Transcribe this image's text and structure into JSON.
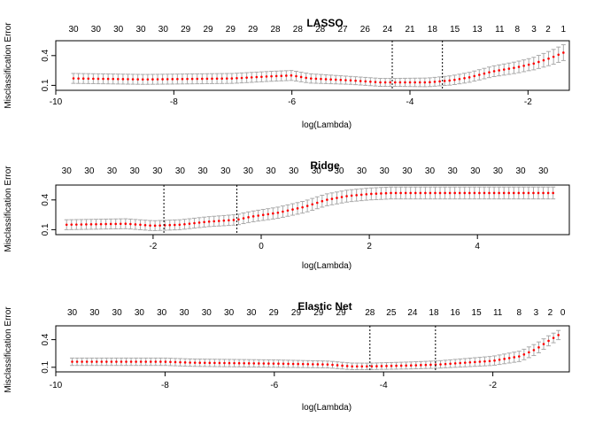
{
  "chart_data": [
    {
      "type": "line",
      "title": "LASSO",
      "xlabel": "log(Lambda)",
      "ylabel": "Misclassification Error",
      "xlim": [
        -10,
        -1.3
      ],
      "ylim": [
        0.05,
        0.55
      ],
      "xticks": [
        "-10",
        "-8",
        "-6",
        "-4",
        "-2"
      ],
      "xtick_values": [
        -10,
        -8,
        -6,
        -4,
        -2
      ],
      "yticks": [
        "0.1",
        "0.4"
      ],
      "ytick_values": [
        0.1,
        0.4
      ],
      "top_axis_labels": [
        "30",
        "30",
        "30",
        "30",
        "30",
        "29",
        "29",
        "29",
        "29",
        "28",
        "28",
        "28",
        "27",
        "26",
        "24",
        "21",
        "18",
        "15",
        "13",
        "11",
        "8",
        "3",
        "2",
        "1"
      ],
      "top_axis_x": [
        -9.7,
        -9.32,
        -8.94,
        -8.56,
        -8.18,
        -7.8,
        -7.42,
        -7.04,
        -6.66,
        -6.28,
        -5.9,
        -5.52,
        -5.14,
        -4.76,
        -4.38,
        -4.0,
        -3.62,
        -3.24,
        -2.86,
        -2.48,
        -2.18,
        -1.9,
        -1.66,
        -1.4
      ],
      "vlines": [
        -4.3,
        -3.45
      ],
      "curve_x": [
        -9.7,
        -8.5,
        -7.0,
        -6.4,
        -6.0,
        -5.7,
        -5.0,
        -4.5,
        -4.3,
        -3.7,
        -3.3,
        -3.0,
        -2.6,
        -2.2,
        -1.9,
        -1.6,
        -1.4
      ],
      "curve_y": [
        0.17,
        0.16,
        0.17,
        0.19,
        0.2,
        0.17,
        0.15,
        0.13,
        0.13,
        0.13,
        0.15,
        0.18,
        0.24,
        0.28,
        0.32,
        0.38,
        0.43
      ],
      "se_x": [
        -9.7,
        -7.0,
        -6.0,
        -5.0,
        -4.3,
        -3.5,
        -3.0,
        -2.5,
        -2.0,
        -1.7,
        -1.4
      ],
      "se_y": [
        0.05,
        0.05,
        0.05,
        0.04,
        0.04,
        0.045,
        0.05,
        0.055,
        0.06,
        0.07,
        0.08
      ],
      "n_points": 100
    },
    {
      "type": "line",
      "title": "Ridge",
      "xlabel": "log(Lambda)",
      "ylabel": "Misclassification Error",
      "xlim": [
        -3.8,
        5.7
      ],
      "ylim": [
        0.05,
        0.55
      ],
      "xticks": [
        "-2",
        "0",
        "2",
        "4"
      ],
      "xtick_values": [
        -2,
        0,
        2,
        4
      ],
      "yticks": [
        "0.1",
        "0.4"
      ],
      "ytick_values": [
        0.1,
        0.4
      ],
      "top_axis_labels": [
        "30",
        "30",
        "30",
        "30",
        "30",
        "30",
        "30",
        "30",
        "30",
        "30",
        "30",
        "30",
        "30",
        "30",
        "30",
        "30",
        "30",
        "30",
        "30",
        "30",
        "30",
        "30"
      ],
      "top_axis_x": [
        -3.6,
        -3.18,
        -2.76,
        -2.34,
        -1.92,
        -1.5,
        -1.08,
        -0.66,
        -0.24,
        0.18,
        0.6,
        1.02,
        1.44,
        1.86,
        2.28,
        2.7,
        3.12,
        3.54,
        3.96,
        4.38,
        4.8,
        5.22
      ],
      "vlines": [
        -1.8,
        -0.45
      ],
      "curve_x": [
        -3.6,
        -2.5,
        -2.0,
        -1.5,
        -1.0,
        -0.45,
        -0.2,
        0.3,
        0.8,
        1.2,
        1.6,
        2.0,
        2.4,
        5.4
      ],
      "curve_y": [
        0.15,
        0.16,
        0.14,
        0.15,
        0.18,
        0.2,
        0.23,
        0.27,
        0.33,
        0.4,
        0.44,
        0.46,
        0.47,
        0.47
      ],
      "se_x": [
        -3.6,
        -1.0,
        0.0,
        1.0,
        2.0,
        5.4
      ],
      "se_y": [
        0.05,
        0.05,
        0.055,
        0.06,
        0.06,
        0.06
      ],
      "n_points": 100
    },
    {
      "type": "line",
      "title": "Elastic Net",
      "xlabel": "log(Lambda)",
      "ylabel": "Misclassification Error",
      "xlim": [
        -10,
        -0.6
      ],
      "ylim": [
        0.05,
        0.55
      ],
      "xticks": [
        "-10",
        "-8",
        "-6",
        "-4",
        "-2"
      ],
      "xtick_values": [
        -10,
        -8,
        -6,
        -4,
        -2
      ],
      "yticks": [
        "0.1",
        "0.4"
      ],
      "ytick_values": [
        0.1,
        0.4
      ],
      "top_axis_labels": [
        "30",
        "30",
        "30",
        "30",
        "30",
        "30",
        "30",
        "30",
        "30",
        "29",
        "29",
        "29",
        "29",
        "28",
        "25",
        "24",
        "18",
        "16",
        "15",
        "11",
        "8",
        "3",
        "2",
        "0"
      ],
      "top_axis_x": [
        -9.7,
        -9.29,
        -8.88,
        -8.47,
        -8.06,
        -7.65,
        -7.24,
        -6.83,
        -6.42,
        -6.01,
        -5.6,
        -5.19,
        -4.78,
        -4.25,
        -3.86,
        -3.47,
        -3.08,
        -2.69,
        -2.3,
        -1.91,
        -1.52,
        -1.21,
        -0.95,
        -0.72
      ],
      "vlines": [
        -4.25,
        -3.05
      ],
      "curve_x": [
        -9.7,
        -8.0,
        -7.5,
        -6.0,
        -5.0,
        -4.6,
        -4.25,
        -3.5,
        -3.0,
        -2.5,
        -2.0,
        -1.5,
        -1.2,
        -1.0,
        -0.8
      ],
      "curve_y": [
        0.16,
        0.16,
        0.15,
        0.14,
        0.13,
        0.11,
        0.11,
        0.12,
        0.13,
        0.15,
        0.17,
        0.22,
        0.3,
        0.38,
        0.45
      ],
      "se_x": [
        -9.7,
        -6.0,
        -4.25,
        -3.0,
        -2.0,
        -1.2,
        -0.8
      ],
      "se_y": [
        0.04,
        0.04,
        0.035,
        0.04,
        0.05,
        0.06,
        0.05
      ],
      "n_points": 100
    }
  ]
}
